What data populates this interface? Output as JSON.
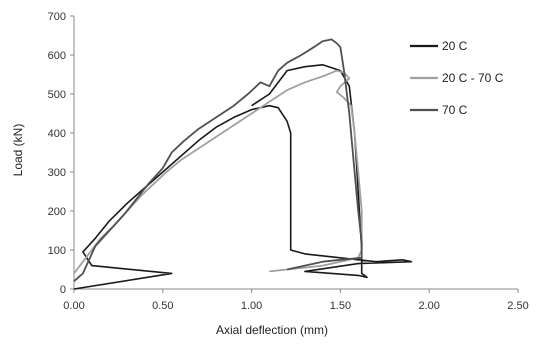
{
  "chart_data": {
    "type": "line",
    "title": "",
    "xlabel": "Axial deflection (mm)",
    "ylabel": "Load (kN)",
    "xlim": [
      0,
      2.5
    ],
    "ylim": [
      0,
      700
    ],
    "x_ticks": [
      0,
      0.5,
      1.0,
      1.5,
      2.0,
      2.5
    ],
    "x_tick_labels": [
      "0.00",
      "0.50",
      "1.00",
      "1.50",
      "2.00",
      "2.50"
    ],
    "y_ticks": [
      0,
      100,
      200,
      300,
      400,
      500,
      600,
      700
    ],
    "y_tick_labels": [
      "0",
      "100",
      "200",
      "300",
      "400",
      "500",
      "600",
      "700"
    ],
    "grid": false,
    "legend_position": "right",
    "series": [
      {
        "name": "20 C",
        "color": "#1a1a1a",
        "width": 1.6,
        "points": [
          [
            0.0,
            0
          ],
          [
            0.55,
            40
          ],
          [
            0.1,
            60
          ],
          [
            0.05,
            95
          ],
          [
            0.12,
            130
          ],
          [
            0.2,
            175
          ],
          [
            0.3,
            220
          ],
          [
            0.4,
            260
          ],
          [
            0.5,
            300
          ],
          [
            0.6,
            340
          ],
          [
            0.7,
            380
          ],
          [
            0.8,
            415
          ],
          [
            0.9,
            440
          ],
          [
            1.0,
            460
          ],
          [
            1.1,
            470
          ],
          [
            1.15,
            465
          ],
          [
            1.2,
            430
          ],
          [
            1.22,
            400
          ],
          [
            1.22,
            300
          ],
          [
            1.22,
            200
          ],
          [
            1.22,
            100
          ],
          [
            1.3,
            90
          ],
          [
            1.5,
            80
          ],
          [
            1.7,
            70
          ],
          [
            1.85,
            75
          ],
          [
            1.9,
            70
          ],
          [
            1.6,
            65
          ],
          [
            1.3,
            45
          ],
          [
            1.6,
            35
          ],
          [
            1.65,
            30
          ],
          [
            1.62,
            40
          ],
          [
            1.62,
            100
          ],
          [
            1.6,
            250
          ],
          [
            1.58,
            400
          ],
          [
            1.55,
            520
          ],
          [
            1.5,
            560
          ],
          [
            1.4,
            575
          ],
          [
            1.3,
            570
          ],
          [
            1.2,
            560
          ],
          [
            1.1,
            500
          ],
          [
            1.0,
            470
          ]
        ]
      },
      {
        "name": "20 C - 70 C",
        "color": "#a0a0a0",
        "width": 1.8,
        "points": [
          [
            0.0,
            40
          ],
          [
            0.05,
            70
          ],
          [
            0.1,
            100
          ],
          [
            0.15,
            130
          ],
          [
            0.22,
            160
          ],
          [
            0.3,
            200
          ],
          [
            0.38,
            240
          ],
          [
            0.45,
            270
          ],
          [
            0.52,
            300
          ],
          [
            0.6,
            330
          ],
          [
            0.7,
            360
          ],
          [
            0.8,
            390
          ],
          [
            0.9,
            420
          ],
          [
            1.0,
            450
          ],
          [
            1.1,
            480
          ],
          [
            1.2,
            510
          ],
          [
            1.3,
            530
          ],
          [
            1.4,
            545
          ],
          [
            1.48,
            560
          ],
          [
            1.52,
            555
          ],
          [
            1.55,
            540
          ],
          [
            1.5,
            520
          ],
          [
            1.48,
            505
          ],
          [
            1.52,
            490
          ],
          [
            1.56,
            470
          ],
          [
            1.58,
            400
          ],
          [
            1.6,
            300
          ],
          [
            1.62,
            200
          ],
          [
            1.62,
            100
          ],
          [
            1.6,
            80
          ],
          [
            1.5,
            70
          ],
          [
            1.4,
            60
          ],
          [
            1.3,
            55
          ],
          [
            1.2,
            50
          ],
          [
            1.1,
            45
          ]
        ]
      },
      {
        "name": "70 C",
        "color": "#505050",
        "width": 1.8,
        "points": [
          [
            0.0,
            20
          ],
          [
            0.05,
            40
          ],
          [
            0.12,
            110
          ],
          [
            0.2,
            150
          ],
          [
            0.28,
            190
          ],
          [
            0.35,
            230
          ],
          [
            0.42,
            270
          ],
          [
            0.5,
            310
          ],
          [
            0.55,
            350
          ],
          [
            0.62,
            380
          ],
          [
            0.7,
            410
          ],
          [
            0.8,
            440
          ],
          [
            0.9,
            470
          ],
          [
            0.98,
            500
          ],
          [
            1.05,
            530
          ],
          [
            1.1,
            520
          ],
          [
            1.15,
            560
          ],
          [
            1.2,
            580
          ],
          [
            1.28,
            600
          ],
          [
            1.35,
            620
          ],
          [
            1.4,
            635
          ],
          [
            1.45,
            640
          ],
          [
            1.48,
            630
          ],
          [
            1.5,
            620
          ],
          [
            1.52,
            560
          ],
          [
            1.55,
            450
          ],
          [
            1.58,
            300
          ],
          [
            1.6,
            200
          ],
          [
            1.62,
            120
          ],
          [
            1.62,
            80
          ],
          [
            1.5,
            75
          ],
          [
            1.4,
            70
          ],
          [
            1.3,
            60
          ],
          [
            1.2,
            50
          ]
        ]
      }
    ]
  }
}
